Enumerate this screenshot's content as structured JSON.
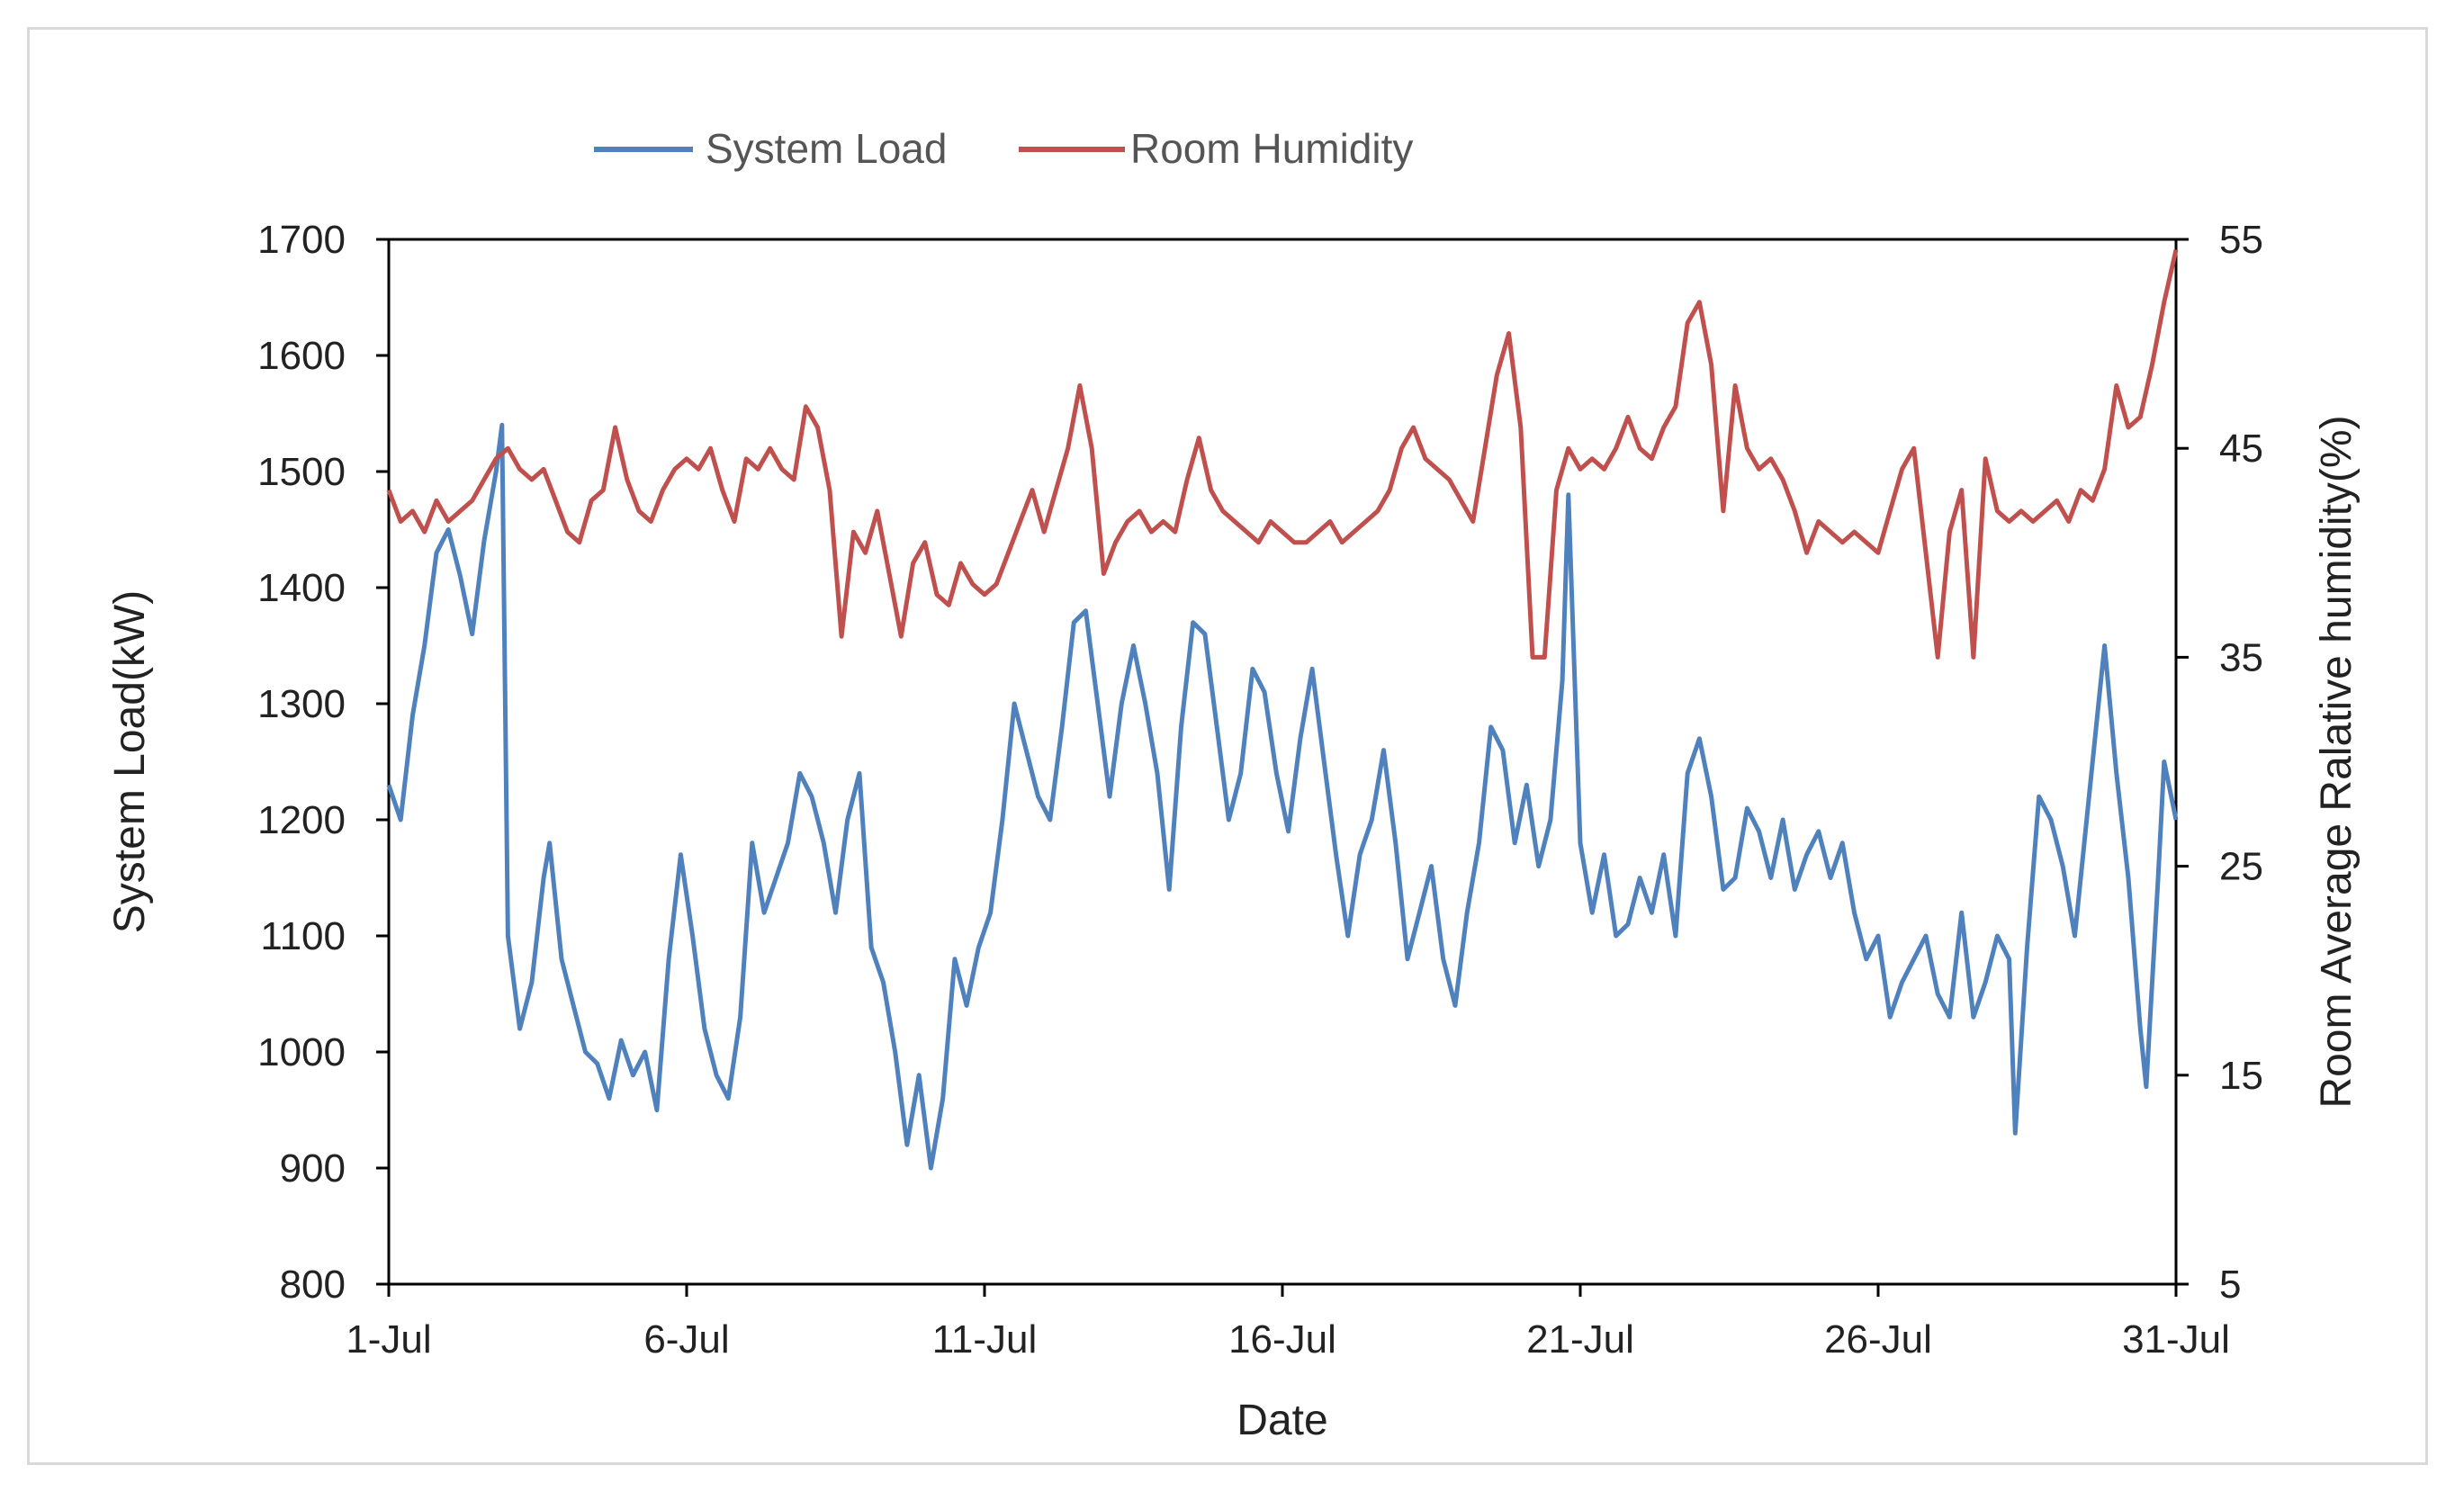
{
  "chart_data": {
    "type": "line",
    "title": "",
    "xlabel": "Date",
    "ylabel": "System Load(kW)",
    "y2label": "Room Average Ralative humidity(%)",
    "ylim": [
      800,
      1700
    ],
    "y2lim": [
      5,
      55
    ],
    "yticks": [
      800,
      900,
      1000,
      1100,
      1200,
      1300,
      1400,
      1500,
      1600,
      1700
    ],
    "y2ticks": [
      5,
      15,
      25,
      35,
      45,
      55
    ],
    "x_start": "1-Jul",
    "x_end": "31-Jul",
    "x_tick_labels": [
      "1-Jul",
      "6-Jul",
      "11-Jul",
      "16-Jul",
      "21-Jul",
      "26-Jul",
      "31-Jul"
    ],
    "x_tick_days": [
      1,
      6,
      11,
      16,
      21,
      26,
      31
    ],
    "grid": false,
    "legend": "top",
    "series": [
      {
        "name": "System Load",
        "axis": "left",
        "color": "#4f81bd",
        "points": [
          [
            1.0,
            1230
          ],
          [
            1.2,
            1200
          ],
          [
            1.4,
            1290
          ],
          [
            1.6,
            1350
          ],
          [
            1.8,
            1430
          ],
          [
            2.0,
            1450
          ],
          [
            2.2,
            1410
          ],
          [
            2.4,
            1360
          ],
          [
            2.6,
            1440
          ],
          [
            2.8,
            1500
          ],
          [
            2.9,
            1540
          ],
          [
            3.0,
            1100
          ],
          [
            3.2,
            1020
          ],
          [
            3.4,
            1060
          ],
          [
            3.6,
            1150
          ],
          [
            3.7,
            1180
          ],
          [
            3.9,
            1080
          ],
          [
            4.1,
            1040
          ],
          [
            4.3,
            1000
          ],
          [
            4.5,
            990
          ],
          [
            4.7,
            960
          ],
          [
            4.9,
            1010
          ],
          [
            5.1,
            980
          ],
          [
            5.3,
            1000
          ],
          [
            5.5,
            950
          ],
          [
            5.7,
            1080
          ],
          [
            5.9,
            1170
          ],
          [
            6.1,
            1100
          ],
          [
            6.3,
            1020
          ],
          [
            6.5,
            980
          ],
          [
            6.7,
            960
          ],
          [
            6.9,
            1030
          ],
          [
            7.1,
            1180
          ],
          [
            7.3,
            1120
          ],
          [
            7.5,
            1150
          ],
          [
            7.7,
            1180
          ],
          [
            7.9,
            1240
          ],
          [
            8.1,
            1220
          ],
          [
            8.3,
            1180
          ],
          [
            8.5,
            1120
          ],
          [
            8.7,
            1200
          ],
          [
            8.9,
            1240
          ],
          [
            9.1,
            1090
          ],
          [
            9.3,
            1060
          ],
          [
            9.5,
            1000
          ],
          [
            9.7,
            920
          ],
          [
            9.9,
            980
          ],
          [
            10.1,
            900
          ],
          [
            10.3,
            960
          ],
          [
            10.5,
            1080
          ],
          [
            10.7,
            1040
          ],
          [
            10.9,
            1090
          ],
          [
            11.1,
            1120
          ],
          [
            11.3,
            1200
          ],
          [
            11.5,
            1300
          ],
          [
            11.7,
            1260
          ],
          [
            11.9,
            1220
          ],
          [
            12.1,
            1200
          ],
          [
            12.3,
            1280
          ],
          [
            12.5,
            1370
          ],
          [
            12.7,
            1380
          ],
          [
            12.9,
            1300
          ],
          [
            13.1,
            1220
          ],
          [
            13.3,
            1300
          ],
          [
            13.5,
            1350
          ],
          [
            13.7,
            1300
          ],
          [
            13.9,
            1240
          ],
          [
            14.1,
            1140
          ],
          [
            14.3,
            1280
          ],
          [
            14.5,
            1370
          ],
          [
            14.7,
            1360
          ],
          [
            14.9,
            1280
          ],
          [
            15.1,
            1200
          ],
          [
            15.3,
            1240
          ],
          [
            15.5,
            1330
          ],
          [
            15.7,
            1310
          ],
          [
            15.9,
            1240
          ],
          [
            16.1,
            1190
          ],
          [
            16.3,
            1270
          ],
          [
            16.5,
            1330
          ],
          [
            16.7,
            1250
          ],
          [
            16.9,
            1170
          ],
          [
            17.1,
            1100
          ],
          [
            17.3,
            1170
          ],
          [
            17.5,
            1200
          ],
          [
            17.7,
            1260
          ],
          [
            17.9,
            1180
          ],
          [
            18.1,
            1080
          ],
          [
            18.3,
            1120
          ],
          [
            18.5,
            1160
          ],
          [
            18.7,
            1080
          ],
          [
            18.9,
            1040
          ],
          [
            19.1,
            1120
          ],
          [
            19.3,
            1180
          ],
          [
            19.5,
            1280
          ],
          [
            19.7,
            1260
          ],
          [
            19.9,
            1180
          ],
          [
            20.1,
            1230
          ],
          [
            20.3,
            1160
          ],
          [
            20.5,
            1200
          ],
          [
            20.7,
            1320
          ],
          [
            20.8,
            1480
          ],
          [
            21.0,
            1180
          ],
          [
            21.2,
            1120
          ],
          [
            21.4,
            1170
          ],
          [
            21.6,
            1100
          ],
          [
            21.8,
            1110
          ],
          [
            22.0,
            1150
          ],
          [
            22.2,
            1120
          ],
          [
            22.4,
            1170
          ],
          [
            22.6,
            1100
          ],
          [
            22.8,
            1240
          ],
          [
            23.0,
            1270
          ],
          [
            23.2,
            1220
          ],
          [
            23.4,
            1140
          ],
          [
            23.6,
            1150
          ],
          [
            23.8,
            1210
          ],
          [
            24.0,
            1190
          ],
          [
            24.2,
            1150
          ],
          [
            24.4,
            1200
          ],
          [
            24.6,
            1140
          ],
          [
            24.8,
            1170
          ],
          [
            25.0,
            1190
          ],
          [
            25.2,
            1150
          ],
          [
            25.4,
            1180
          ],
          [
            25.6,
            1120
          ],
          [
            25.8,
            1080
          ],
          [
            26.0,
            1100
          ],
          [
            26.2,
            1030
          ],
          [
            26.4,
            1060
          ],
          [
            26.6,
            1080
          ],
          [
            26.8,
            1100
          ],
          [
            27.0,
            1050
          ],
          [
            27.2,
            1030
          ],
          [
            27.4,
            1120
          ],
          [
            27.6,
            1030
          ],
          [
            27.8,
            1060
          ],
          [
            28.0,
            1100
          ],
          [
            28.2,
            1080
          ],
          [
            28.3,
            930
          ],
          [
            28.5,
            1090
          ],
          [
            28.7,
            1220
          ],
          [
            28.9,
            1200
          ],
          [
            29.1,
            1160
          ],
          [
            29.3,
            1100
          ],
          [
            29.5,
            1200
          ],
          [
            29.7,
            1300
          ],
          [
            29.8,
            1350
          ],
          [
            30.0,
            1240
          ],
          [
            30.2,
            1150
          ],
          [
            30.4,
            1020
          ],
          [
            30.5,
            970
          ],
          [
            30.7,
            1150
          ],
          [
            30.8,
            1250
          ],
          [
            31.0,
            1200
          ]
        ]
      },
      {
        "name": "Room Humidity",
        "axis": "right",
        "color": "#c0504d",
        "points": [
          [
            1.0,
            43
          ],
          [
            1.2,
            41.5
          ],
          [
            1.4,
            42
          ],
          [
            1.6,
            41
          ],
          [
            1.8,
            42.5
          ],
          [
            2.0,
            41.5
          ],
          [
            2.2,
            42
          ],
          [
            2.4,
            42.5
          ],
          [
            2.6,
            43.5
          ],
          [
            2.8,
            44.5
          ],
          [
            3.0,
            45
          ],
          [
            3.2,
            44
          ],
          [
            3.4,
            43.5
          ],
          [
            3.6,
            44
          ],
          [
            3.8,
            42.5
          ],
          [
            4.0,
            41
          ],
          [
            4.2,
            40.5
          ],
          [
            4.4,
            42.5
          ],
          [
            4.6,
            43
          ],
          [
            4.8,
            46
          ],
          [
            5.0,
            43.5
          ],
          [
            5.2,
            42
          ],
          [
            5.4,
            41.5
          ],
          [
            5.6,
            43
          ],
          [
            5.8,
            44
          ],
          [
            6.0,
            44.5
          ],
          [
            6.2,
            44
          ],
          [
            6.4,
            45
          ],
          [
            6.6,
            43
          ],
          [
            6.8,
            41.5
          ],
          [
            7.0,
            44.5
          ],
          [
            7.2,
            44
          ],
          [
            7.4,
            45
          ],
          [
            7.6,
            44
          ],
          [
            7.8,
            43.5
          ],
          [
            8.0,
            47
          ],
          [
            8.2,
            46
          ],
          [
            8.4,
            43
          ],
          [
            8.6,
            36
          ],
          [
            8.8,
            41
          ],
          [
            9.0,
            40
          ],
          [
            9.2,
            42
          ],
          [
            9.4,
            39
          ],
          [
            9.6,
            36
          ],
          [
            9.8,
            39.5
          ],
          [
            10.0,
            40.5
          ],
          [
            10.2,
            38
          ],
          [
            10.4,
            37.5
          ],
          [
            10.6,
            39.5
          ],
          [
            10.8,
            38.5
          ],
          [
            11.0,
            38
          ],
          [
            11.2,
            38.5
          ],
          [
            11.4,
            40
          ],
          [
            11.6,
            41.5
          ],
          [
            11.8,
            43
          ],
          [
            12.0,
            41
          ],
          [
            12.2,
            43
          ],
          [
            12.4,
            45
          ],
          [
            12.6,
            48
          ],
          [
            12.8,
            45
          ],
          [
            13.0,
            39
          ],
          [
            13.2,
            40.5
          ],
          [
            13.4,
            41.5
          ],
          [
            13.6,
            42
          ],
          [
            13.8,
            41
          ],
          [
            14.0,
            41.5
          ],
          [
            14.2,
            41
          ],
          [
            14.4,
            43.5
          ],
          [
            14.6,
            45.5
          ],
          [
            14.8,
            43
          ],
          [
            15.0,
            42
          ],
          [
            15.2,
            41.5
          ],
          [
            15.4,
            41
          ],
          [
            15.6,
            40.5
          ],
          [
            15.8,
            41.5
          ],
          [
            16.0,
            41
          ],
          [
            16.2,
            40.5
          ],
          [
            16.4,
            40.5
          ],
          [
            16.6,
            41
          ],
          [
            16.8,
            41.5
          ],
          [
            17.0,
            40.5
          ],
          [
            17.2,
            41
          ],
          [
            17.4,
            41.5
          ],
          [
            17.6,
            42
          ],
          [
            17.8,
            43
          ],
          [
            18.0,
            45
          ],
          [
            18.2,
            46
          ],
          [
            18.4,
            44.5
          ],
          [
            18.6,
            44
          ],
          [
            18.8,
            43.5
          ],
          [
            19.0,
            42.5
          ],
          [
            19.2,
            41.5
          ],
          [
            19.4,
            45
          ],
          [
            19.6,
            48.5
          ],
          [
            19.8,
            50.5
          ],
          [
            20.0,
            46
          ],
          [
            20.2,
            35
          ],
          [
            20.4,
            35
          ],
          [
            20.6,
            43
          ],
          [
            20.8,
            45
          ],
          [
            21.0,
            44
          ],
          [
            21.2,
            44.5
          ],
          [
            21.4,
            44
          ],
          [
            21.6,
            45
          ],
          [
            21.8,
            46.5
          ],
          [
            22.0,
            45
          ],
          [
            22.2,
            44.5
          ],
          [
            22.4,
            46
          ],
          [
            22.6,
            47
          ],
          [
            22.8,
            51
          ],
          [
            23.0,
            52
          ],
          [
            23.2,
            49
          ],
          [
            23.4,
            42
          ],
          [
            23.6,
            48
          ],
          [
            23.8,
            45
          ],
          [
            24.0,
            44
          ],
          [
            24.2,
            44.5
          ],
          [
            24.4,
            43.5
          ],
          [
            24.6,
            42
          ],
          [
            24.8,
            40
          ],
          [
            25.0,
            41.5
          ],
          [
            25.2,
            41
          ],
          [
            25.4,
            40.5
          ],
          [
            25.6,
            41
          ],
          [
            25.8,
            40.5
          ],
          [
            26.0,
            40
          ],
          [
            26.2,
            42
          ],
          [
            26.4,
            44
          ],
          [
            26.6,
            45
          ],
          [
            26.8,
            40
          ],
          [
            27.0,
            35
          ],
          [
            27.2,
            41
          ],
          [
            27.4,
            43
          ],
          [
            27.6,
            35
          ],
          [
            27.8,
            44.5
          ],
          [
            28.0,
            42
          ],
          [
            28.2,
            41.5
          ],
          [
            28.4,
            42
          ],
          [
            28.6,
            41.5
          ],
          [
            28.8,
            42
          ],
          [
            29.0,
            42.5
          ],
          [
            29.2,
            41.5
          ],
          [
            29.4,
            43
          ],
          [
            29.6,
            42.5
          ],
          [
            29.8,
            44
          ],
          [
            30.0,
            48
          ],
          [
            30.2,
            46
          ],
          [
            30.4,
            46.5
          ],
          [
            30.6,
            49
          ],
          [
            30.8,
            52
          ],
          [
            31.0,
            54.5
          ]
        ]
      }
    ]
  }
}
